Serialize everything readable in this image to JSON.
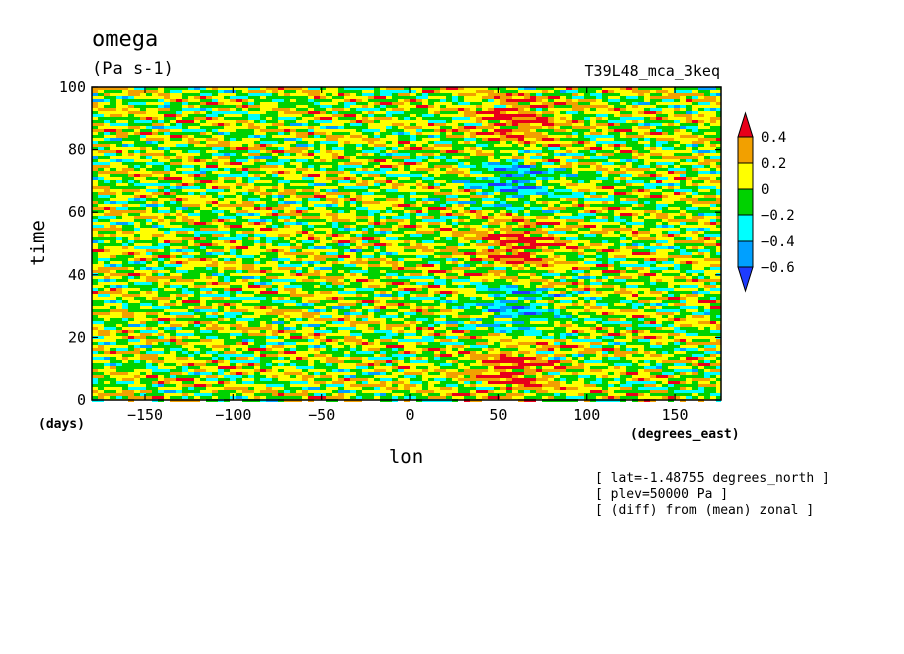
{
  "chart_data": {
    "type": "heatmap",
    "title": "omega",
    "units": "(Pa s-1)",
    "run_label": "T39L48_mca_3keq",
    "xlabel": "lon",
    "ylabel": "time",
    "x_units": "(degrees_east)",
    "y_units": "(days)",
    "xlim": [
      -180,
      176
    ],
    "ylim": [
      0,
      100
    ],
    "x_ticks": [
      -150,
      -100,
      -50,
      0,
      50,
      100,
      150
    ],
    "x_tick_labels": [
      "-150",
      "-100",
      "-50",
      "0",
      "50",
      "100",
      "150"
    ],
    "y_ticks": [
      0,
      20,
      40,
      60,
      80,
      100
    ],
    "y_tick_labels": [
      "0",
      "20",
      "40",
      "60",
      "80",
      "100"
    ],
    "colorbar": {
      "levels": [
        0.4,
        0.2,
        0,
        -0.2,
        -0.4,
        -0.6
      ],
      "labels": [
        "0.4",
        "0.2",
        "0",
        "-0.2",
        "-0.4",
        "-0.6"
      ],
      "bins": [
        {
          "range": "> 0.4",
          "color": "#e8001a"
        },
        {
          "range": "0.2 to 0.4",
          "color": "#f2a000"
        },
        {
          "range": "0 to 0.2",
          "color": "#ffff00"
        },
        {
          "range": "-0.2 to 0",
          "color": "#00d200"
        },
        {
          "range": "-0.4 to -0.2",
          "color": "#00ffff"
        },
        {
          "range": "-0.6 to -0.4",
          "color": "#00a0ff"
        },
        {
          "range": "< -0.6",
          "color": "#1e3cff"
        }
      ]
    },
    "annotations": [
      "[ lat=-1.48755 degrees_north ]",
      "[ plev=50000 Pa ]",
      "[ (diff) from (mean) zonal ]"
    ],
    "grid": false
  }
}
